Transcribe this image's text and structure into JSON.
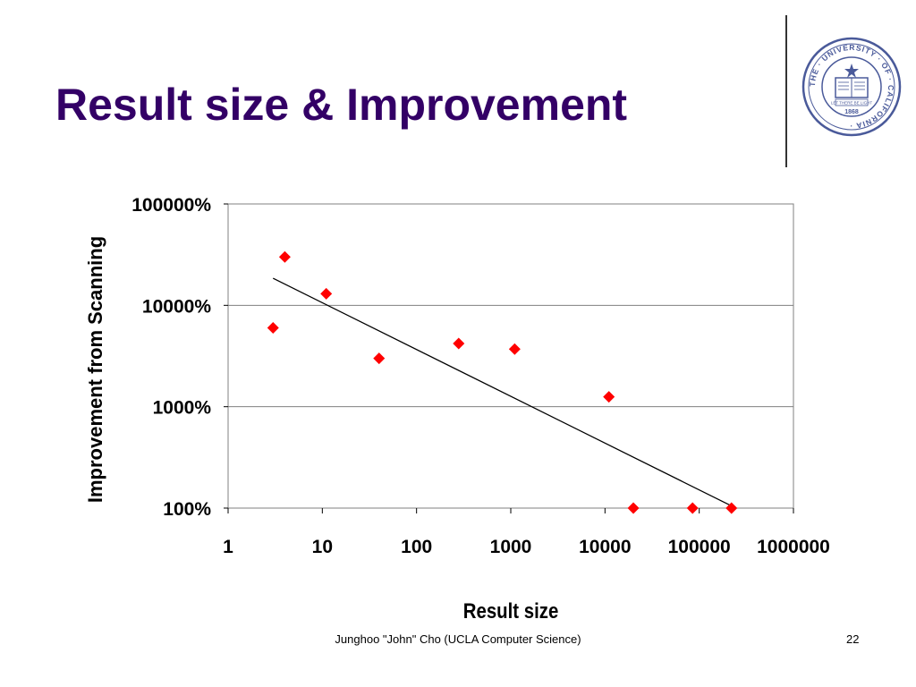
{
  "slide": {
    "title": "Result size & Improvement",
    "footer": "Junghoo \"John\" Cho (UCLA Computer Science)",
    "page_number": "22"
  },
  "logo": {
    "ring_text": "THE · UNIVERSITY · OF · CALIFORNIA ·",
    "year": "1868",
    "banner": "LET THERE BE LIGHT",
    "color": "#4a5a9a"
  },
  "chart_data": {
    "type": "scatter",
    "xlabel": "Result size",
    "ylabel": "Improvement from Scanning",
    "x_scale": "log",
    "y_scale": "log",
    "xlim": [
      1,
      1000000
    ],
    "ylim": [
      1,
      1000
    ],
    "x_ticks": [
      "1",
      "10",
      "100",
      "1000",
      "10000",
      "100000",
      "1000000"
    ],
    "y_ticks": [
      "100%",
      "1000%",
      "10000%",
      "100000%"
    ],
    "grid": "horizontal",
    "marker_color": "#ff0000",
    "points": [
      {
        "x": 3,
        "y": 60
      },
      {
        "x": 4,
        "y": 300
      },
      {
        "x": 11,
        "y": 130
      },
      {
        "x": 40,
        "y": 30
      },
      {
        "x": 280,
        "y": 42
      },
      {
        "x": 1100,
        "y": 37
      },
      {
        "x": 11000,
        "y": 12.5
      },
      {
        "x": 20000,
        "y": 1
      },
      {
        "x": 85000,
        "y": 1
      },
      {
        "x": 220000,
        "y": 1
      }
    ],
    "trendline": {
      "x": [
        3,
        220000
      ],
      "y": [
        185,
        1.05
      ]
    }
  }
}
